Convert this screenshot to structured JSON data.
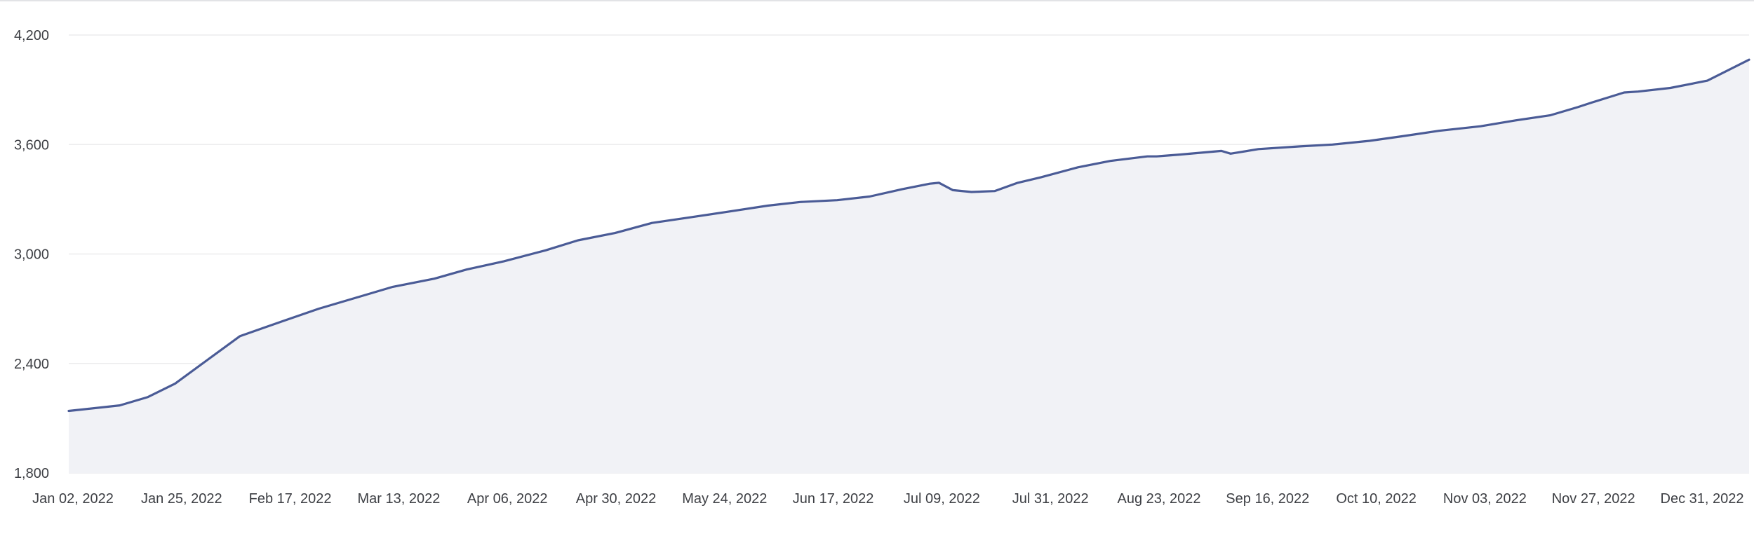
{
  "chart_data": {
    "type": "area",
    "title": "",
    "xlabel": "",
    "ylabel": "",
    "ylim": [
      1800,
      4200
    ],
    "y_ticks": [
      "1,800",
      "2,400",
      "3,000",
      "3,600",
      "4,200"
    ],
    "x_tick_labels": [
      "Jan 02, 2022",
      "Jan 25, 2022",
      "Feb 17, 2022",
      "Mar 13, 2022",
      "Apr 06, 2022",
      "Apr 30, 2022",
      "May 24, 2022",
      "Jun 17, 2022",
      "Jul 09, 2022",
      "Jul 31, 2022",
      "Aug 23, 2022",
      "Sep 16, 2022",
      "Oct 10, 2022",
      "Nov 03, 2022",
      "Nov 27, 2022",
      "Dec 31, 2022"
    ],
    "grid": true,
    "colors": {
      "line": "#4a5b96",
      "fill": "#f1f2f6",
      "grid": "#ececee"
    },
    "series": [
      {
        "x": [
          "2022-01-02",
          "2022-01-13",
          "2022-01-19",
          "2022-01-25",
          "2022-02-01",
          "2022-02-08",
          "2022-02-17",
          "2022-02-25",
          "2022-03-05",
          "2022-03-13",
          "2022-03-22",
          "2022-03-29",
          "2022-04-06",
          "2022-04-15",
          "2022-04-22",
          "2022-04-30",
          "2022-05-08",
          "2022-05-16",
          "2022-05-24",
          "2022-06-02",
          "2022-06-09",
          "2022-06-17",
          "2022-06-24",
          "2022-07-01",
          "2022-07-07",
          "2022-07-09",
          "2022-07-12",
          "2022-07-16",
          "2022-07-21",
          "2022-07-26",
          "2022-07-31",
          "2022-08-08",
          "2022-08-15",
          "2022-08-23",
          "2022-08-25",
          "2022-08-30",
          "2022-09-08",
          "2022-09-10",
          "2022-09-16",
          "2022-09-25",
          "2022-10-02",
          "2022-10-10",
          "2022-10-17",
          "2022-10-25",
          "2022-11-03",
          "2022-11-10",
          "2022-11-18",
          "2022-11-24",
          "2022-11-27",
          "2022-12-04",
          "2022-12-07",
          "2022-12-14",
          "2022-12-22",
          "2022-12-31"
        ],
        "y": [
          2140,
          2170,
          2215,
          2290,
          2420,
          2550,
          2630,
          2700,
          2760,
          2820,
          2865,
          2915,
          2960,
          3020,
          3075,
          3115,
          3170,
          3200,
          3230,
          3265,
          3285,
          3295,
          3315,
          3355,
          3385,
          3390,
          3350,
          3340,
          3345,
          3390,
          3420,
          3475,
          3510,
          3535,
          3535,
          3545,
          3565,
          3550,
          3575,
          3590,
          3600,
          3620,
          3645,
          3675,
          3700,
          3730,
          3760,
          3805,
          3830,
          3885,
          3890,
          3910,
          3950,
          4065
        ]
      }
    ]
  }
}
